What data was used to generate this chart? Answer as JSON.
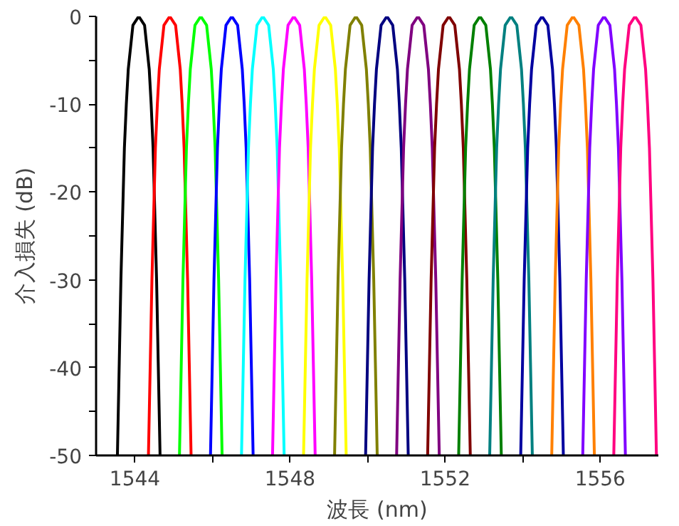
{
  "chart_data": {
    "type": "line",
    "xlabel": "波長 (nm)",
    "ylabel": "介入損失 (dB)",
    "xlim": [
      1543,
      1557.5
    ],
    "ylim": [
      -50,
      0
    ],
    "xticks": [
      1544,
      {
        "value": 1546,
        "label": null
      },
      1548,
      {
        "value": 1550,
        "label": null
      },
      1552,
      {
        "value": 1554,
        "label": null
      },
      1556
    ],
    "yticks": [
      -50,
      {
        "value": -45,
        "label": null
      },
      -40,
      {
        "value": -35,
        "label": null
      },
      -30,
      {
        "value": -25,
        "label": null
      },
      -20,
      {
        "value": -15,
        "label": null
      },
      -10,
      {
        "value": -5,
        "label": null
      },
      0
    ],
    "grid": false,
    "marker": "none",
    "line_style": "solid",
    "series": [
      {
        "color": "#000000",
        "x": [
          1543.55,
          1543.64,
          1543.73,
          1543.78,
          1543.83,
          1543.95,
          1544.1,
          1544.25,
          1544.37,
          1544.42,
          1544.47,
          1544.56,
          1544.65
        ],
        "values": [
          -50,
          -30,
          -15,
          -10,
          -6,
          -1,
          0,
          -1,
          -6,
          -10,
          -15,
          -30,
          -50
        ]
      },
      {
        "color": "#ff0000",
        "x": [
          1544.35,
          1544.44,
          1544.53,
          1544.58,
          1544.63,
          1544.75,
          1544.9,
          1545.05,
          1545.17,
          1545.22,
          1545.27,
          1545.36,
          1545.45
        ],
        "values": [
          -50,
          -30,
          -15,
          -10,
          -6,
          -1,
          0,
          -1,
          -6,
          -10,
          -15,
          -30,
          -50
        ]
      },
      {
        "color": "#00ff00",
        "x": [
          1545.15,
          1545.24,
          1545.33,
          1545.38,
          1545.43,
          1545.55,
          1545.7,
          1545.85,
          1545.97,
          1546.02,
          1546.07,
          1546.16,
          1546.25
        ],
        "values": [
          -50,
          -30,
          -15,
          -10,
          -6,
          -1,
          0,
          -1,
          -6,
          -10,
          -15,
          -30,
          -50
        ]
      },
      {
        "color": "#0000ff",
        "x": [
          1545.95,
          1546.04,
          1546.13,
          1546.18,
          1546.23,
          1546.35,
          1546.5,
          1546.65,
          1546.77,
          1546.82,
          1546.87,
          1546.96,
          1547.05
        ],
        "values": [
          -50,
          -30,
          -15,
          -10,
          -6,
          -1,
          0,
          -1,
          -6,
          -10,
          -15,
          -30,
          -50
        ]
      },
      {
        "color": "#00ffff",
        "x": [
          1546.75,
          1546.84,
          1546.93,
          1546.98,
          1547.03,
          1547.15,
          1547.3,
          1547.45,
          1547.57,
          1547.62,
          1547.67,
          1547.76,
          1547.85
        ],
        "values": [
          -50,
          -30,
          -15,
          -10,
          -6,
          -1,
          0,
          -1,
          -6,
          -10,
          -15,
          -30,
          -50
        ]
      },
      {
        "color": "#ff00ff",
        "x": [
          1547.55,
          1547.64,
          1547.73,
          1547.78,
          1547.83,
          1547.95,
          1548.1,
          1548.25,
          1548.37,
          1548.42,
          1548.47,
          1548.56,
          1548.65
        ],
        "values": [
          -50,
          -30,
          -15,
          -10,
          -6,
          -1,
          0,
          -1,
          -6,
          -10,
          -15,
          -30,
          -50
        ]
      },
      {
        "color": "#ffff00",
        "x": [
          1548.35,
          1548.44,
          1548.53,
          1548.58,
          1548.63,
          1548.75,
          1548.9,
          1549.05,
          1549.17,
          1549.22,
          1549.27,
          1549.36,
          1549.45
        ],
        "values": [
          -50,
          -30,
          -15,
          -10,
          -6,
          -1,
          0,
          -1,
          -6,
          -10,
          -15,
          -30,
          -50
        ]
      },
      {
        "color": "#808000",
        "x": [
          1549.15,
          1549.24,
          1549.33,
          1549.38,
          1549.43,
          1549.55,
          1549.7,
          1549.85,
          1549.97,
          1550.02,
          1550.07,
          1550.16,
          1550.25
        ],
        "values": [
          -50,
          -30,
          -15,
          -10,
          -6,
          -1,
          0,
          -1,
          -6,
          -10,
          -15,
          -30,
          -50
        ]
      },
      {
        "color": "#000080",
        "x": [
          1549.95,
          1550.04,
          1550.13,
          1550.18,
          1550.23,
          1550.35,
          1550.5,
          1550.65,
          1550.77,
          1550.82,
          1550.87,
          1550.96,
          1551.05
        ],
        "values": [
          -50,
          -30,
          -15,
          -10,
          -6,
          -1,
          0,
          -1,
          -6,
          -10,
          -15,
          -30,
          -50
        ]
      },
      {
        "color": "#800080",
        "x": [
          1550.75,
          1550.84,
          1550.93,
          1550.98,
          1551.03,
          1551.15,
          1551.3,
          1551.45,
          1551.57,
          1551.62,
          1551.67,
          1551.76,
          1551.85
        ],
        "values": [
          -50,
          -30,
          -15,
          -10,
          -6,
          -1,
          0,
          -1,
          -6,
          -10,
          -15,
          -30,
          -50
        ]
      },
      {
        "color": "#800000",
        "x": [
          1551.55,
          1551.64,
          1551.73,
          1551.78,
          1551.83,
          1551.95,
          1552.1,
          1552.25,
          1552.37,
          1552.42,
          1552.47,
          1552.56,
          1552.65
        ],
        "values": [
          -50,
          -30,
          -15,
          -10,
          -6,
          -1,
          0,
          -1,
          -6,
          -10,
          -15,
          -30,
          -50
        ]
      },
      {
        "color": "#008000",
        "x": [
          1552.35,
          1552.44,
          1552.53,
          1552.58,
          1552.63,
          1552.75,
          1552.9,
          1553.05,
          1553.17,
          1553.22,
          1553.27,
          1553.36,
          1553.45
        ],
        "values": [
          -50,
          -30,
          -15,
          -10,
          -6,
          -1,
          0,
          -1,
          -6,
          -10,
          -15,
          -30,
          -50
        ]
      },
      {
        "color": "#008080",
        "x": [
          1553.15,
          1553.24,
          1553.33,
          1553.38,
          1553.43,
          1553.55,
          1553.7,
          1553.85,
          1553.97,
          1554.02,
          1554.07,
          1554.16,
          1554.25
        ],
        "values": [
          -50,
          -30,
          -15,
          -10,
          -6,
          -1,
          0,
          -1,
          -6,
          -10,
          -15,
          -30,
          -50
        ]
      },
      {
        "color": "#0000a0",
        "x": [
          1553.95,
          1554.04,
          1554.13,
          1554.18,
          1554.23,
          1554.35,
          1554.5,
          1554.65,
          1554.77,
          1554.82,
          1554.87,
          1554.96,
          1555.05
        ],
        "values": [
          -50,
          -30,
          -15,
          -10,
          -6,
          -1,
          0,
          -1,
          -6,
          -10,
          -15,
          -30,
          -50
        ]
      },
      {
        "color": "#ff8000",
        "x": [
          1554.75,
          1554.84,
          1554.93,
          1554.98,
          1555.03,
          1555.15,
          1555.3,
          1555.45,
          1555.57,
          1555.62,
          1555.67,
          1555.76,
          1555.85
        ],
        "values": [
          -50,
          -30,
          -15,
          -10,
          -6,
          -1,
          0,
          -1,
          -6,
          -10,
          -15,
          -30,
          -50
        ]
      },
      {
        "color": "#8000ff",
        "x": [
          1555.55,
          1555.64,
          1555.73,
          1555.78,
          1555.83,
          1555.95,
          1556.1,
          1556.25,
          1556.37,
          1556.42,
          1556.47,
          1556.56,
          1556.65
        ],
        "values": [
          -50,
          -30,
          -15,
          -10,
          -6,
          -1,
          0,
          -1,
          -6,
          -10,
          -15,
          -30,
          -50
        ]
      },
      {
        "color": "#ff0080",
        "x": [
          1556.35,
          1556.44,
          1556.53,
          1556.58,
          1556.63,
          1556.75,
          1556.9,
          1557.05,
          1557.17,
          1557.22,
          1557.27,
          1557.36,
          1557.45
        ],
        "values": [
          -50,
          -30,
          -15,
          -10,
          -6,
          -1,
          0,
          -1,
          -6,
          -10,
          -15,
          -30,
          -50
        ]
      }
    ]
  }
}
